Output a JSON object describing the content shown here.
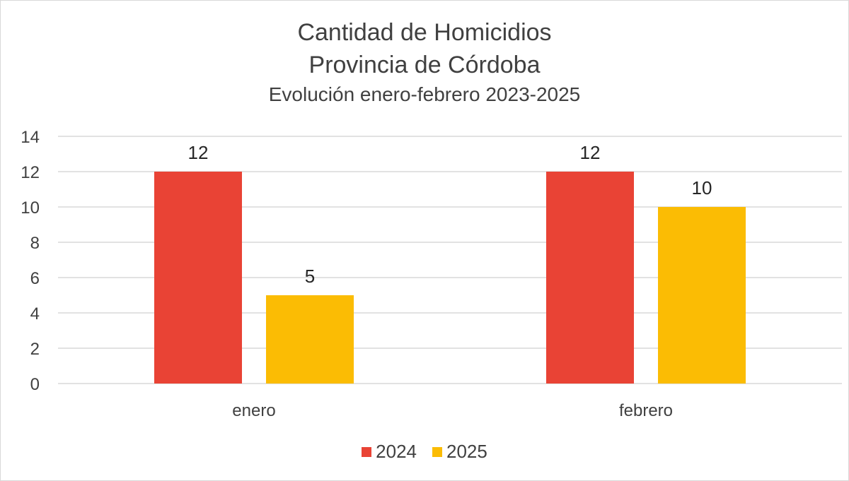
{
  "chart_data": {
    "type": "bar",
    "title": "Cantidad de Homicidios",
    "subtitle_1": "Provincia de Córdoba",
    "subtitle_2": "Evolución enero-febrero 2023-2025",
    "xlabel": "",
    "ylabel": "",
    "categories": [
      "enero",
      "febrero"
    ],
    "series": [
      {
        "name": "2024",
        "color": "#E94335",
        "values": [
          12,
          12
        ]
      },
      {
        "name": "2025",
        "color": "#FBBC04",
        "values": [
          5,
          10
        ]
      }
    ],
    "ylim": [
      0,
      14
    ],
    "yticks": [
      "0",
      "2",
      "4",
      "6",
      "8",
      "10",
      "12",
      "14"
    ],
    "grid": true,
    "legend_position": "bottom",
    "data_labels": true
  }
}
